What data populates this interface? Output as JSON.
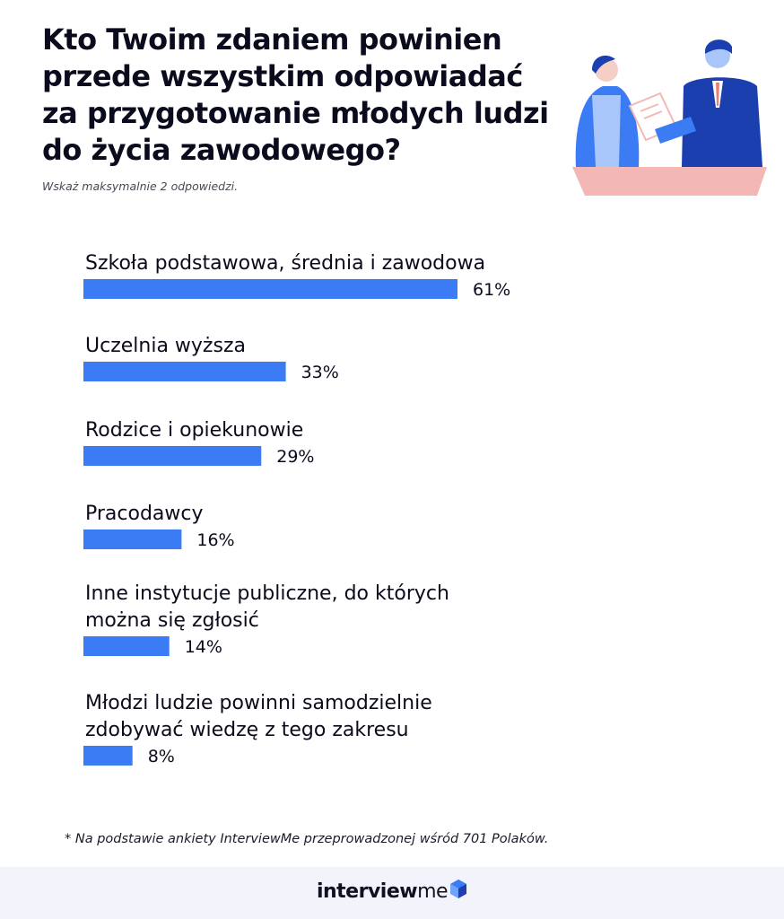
{
  "title": "Kto Twoim zdaniem powinien przede wszystkim odpowiadać za przygotowanie młodych ludzi do życia zawodowego?",
  "subtitle": "Wskaż maksymalnie 2 odpowiedzi.",
  "footnote": "* Na podstawie ankiety InterviewMe przeprowadzonej wśród 701 Polaków.",
  "logo": {
    "part1": "interview",
    "part2": "me"
  },
  "colors": {
    "bar": "#3b7cf5",
    "footer_bg": "#f3f4fb",
    "desk": "#f3b8b5",
    "navy": "#1b3fae",
    "blue": "#3b7cf5"
  },
  "chart_data": {
    "type": "bar",
    "orientation": "horizontal",
    "categories": [
      [
        "Szkoła podstawowa, średnia i zawodowa"
      ],
      [
        "Uczelnia wyższa"
      ],
      [
        "Rodzice i opiekunowie"
      ],
      [
        "Pracodawcy"
      ],
      [
        "Inne instytucje publiczne, do których",
        "można się zgłosić"
      ],
      [
        "Młodzi ludzie powinni samodzielnie",
        "zdobywać wiedzę z tego zakresu"
      ]
    ],
    "values": [
      61,
      33,
      29,
      16,
      14,
      8
    ],
    "value_labels": [
      "61%",
      "33%",
      "29%",
      "16%",
      "14%",
      "8%"
    ],
    "unit": "%",
    "xlim": [
      0,
      100
    ]
  }
}
